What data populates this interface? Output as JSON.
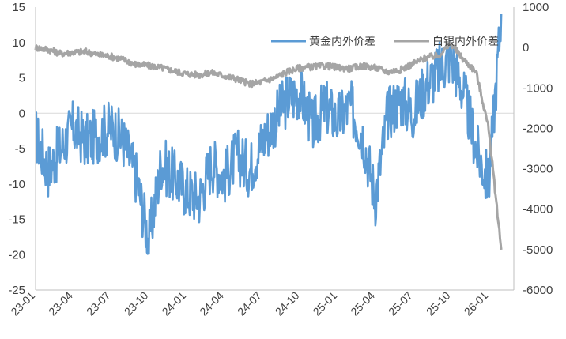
{
  "chart_data": {
    "type": "line",
    "categories": [
      "23-01",
      "23-04",
      "23-07",
      "23-10",
      "24-01",
      "24-04",
      "24-07",
      "24-10",
      "25-01",
      "25-04",
      "25-07",
      "25-10",
      "26-01"
    ],
    "y_left": {
      "ticks": [
        "15",
        "10",
        "5",
        "0",
        "-5",
        "-10",
        "-15",
        "-20",
        "-25"
      ],
      "range": [
        -25,
        15
      ]
    },
    "y_right": {
      "ticks": [
        "1000",
        "0",
        "-1000",
        "-2000",
        "-3000",
        "-4000",
        "-5000",
        "-6000"
      ],
      "range": [
        -6000,
        1000
      ]
    },
    "zero_line": "left axis 0",
    "legend_position": "top-right",
    "series": [
      {
        "name": "黄金内外价差",
        "axis": "left",
        "color": "#5B9BD5",
        "monthly_points": [
          [
            "23-01",
            -3
          ],
          [
            "23-02",
            -8
          ],
          [
            "23-03",
            -5
          ],
          [
            "23-04",
            -2
          ],
          [
            "23-05",
            -4
          ],
          [
            "23-06",
            -3
          ],
          [
            "23-07",
            -2
          ],
          [
            "23-08",
            -4
          ],
          [
            "23-09",
            -9
          ],
          [
            "23-10",
            -18
          ],
          [
            "23-11",
            -7
          ],
          [
            "23-12",
            -9
          ],
          [
            "24-01",
            -11
          ],
          [
            "24-02",
            -12
          ],
          [
            "24-03",
            -7
          ],
          [
            "24-04",
            -9
          ],
          [
            "24-05",
            -6
          ],
          [
            "24-06",
            -8
          ],
          [
            "24-07",
            -4
          ],
          [
            "24-08",
            -1
          ],
          [
            "24-09",
            2
          ],
          [
            "24-10",
            3
          ],
          [
            "24-11",
            -2
          ],
          [
            "24-12",
            1
          ],
          [
            "25-01",
            -1
          ],
          [
            "25-02",
            1
          ],
          [
            "25-03",
            -3
          ],
          [
            "25-04",
            -12
          ],
          [
            "25-05",
            0
          ],
          [
            "25-06",
            2
          ],
          [
            "25-07",
            0
          ],
          [
            "25-08",
            4
          ],
          [
            "25-09",
            6
          ],
          [
            "25-10",
            8
          ],
          [
            "25-11",
            3
          ],
          [
            "25-12",
            -5
          ],
          [
            "26-01",
            -10
          ],
          [
            "26-02",
            14
          ]
        ]
      },
      {
        "name": "白银内外价差",
        "axis": "right",
        "color": "#A5A5A5",
        "monthly_points": [
          [
            "23-01",
            0
          ],
          [
            "23-02",
            -50
          ],
          [
            "23-03",
            -150
          ],
          [
            "23-04",
            -120
          ],
          [
            "23-05",
            -100
          ],
          [
            "23-06",
            -180
          ],
          [
            "23-07",
            -220
          ],
          [
            "23-08",
            -300
          ],
          [
            "23-09",
            -420
          ],
          [
            "23-10",
            -450
          ],
          [
            "23-11",
            -500
          ],
          [
            "23-12",
            -580
          ],
          [
            "24-01",
            -650
          ],
          [
            "24-02",
            -680
          ],
          [
            "24-03",
            -620
          ],
          [
            "24-04",
            -700
          ],
          [
            "24-05",
            -780
          ],
          [
            "24-06",
            -900
          ],
          [
            "24-07",
            -850
          ],
          [
            "24-08",
            -750
          ],
          [
            "24-09",
            -600
          ],
          [
            "24-10",
            -500
          ],
          [
            "24-11",
            -480
          ],
          [
            "24-12",
            -450
          ],
          [
            "25-01",
            -500
          ],
          [
            "25-02",
            -520
          ],
          [
            "25-03",
            -450
          ],
          [
            "25-04",
            -500
          ],
          [
            "25-05",
            -600
          ],
          [
            "25-06",
            -550
          ],
          [
            "25-07",
            -400
          ],
          [
            "25-08",
            -250
          ],
          [
            "25-09",
            -200
          ],
          [
            "25-10",
            100
          ],
          [
            "25-11",
            -300
          ],
          [
            "25-12",
            -600
          ],
          [
            "26-01",
            -2000
          ],
          [
            "26-02",
            -5000
          ]
        ]
      }
    ]
  }
}
